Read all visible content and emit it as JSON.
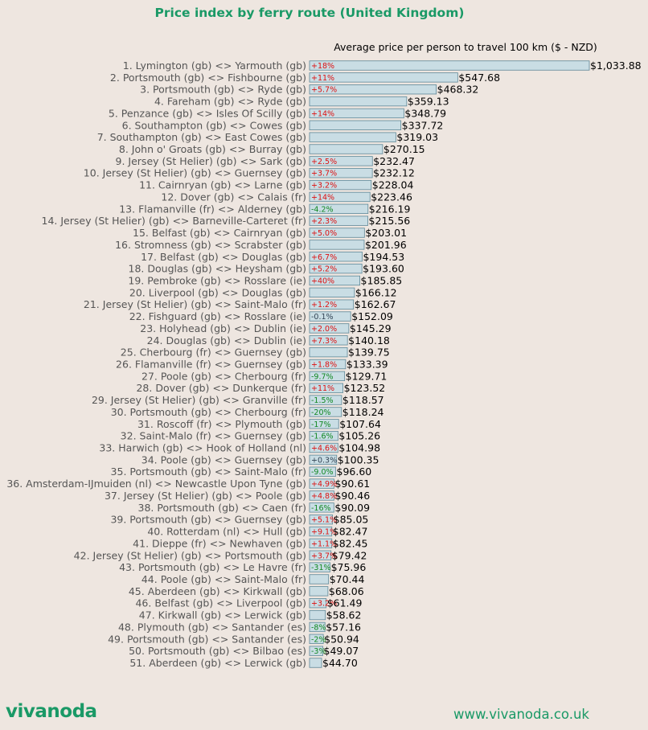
{
  "header": {
    "title": "Price index by ferry route (United Kingdom)"
  },
  "footer": {
    "logo_text": "vivanoda",
    "url": "www.vivanoda.co.uk"
  },
  "colors": {
    "bar_fill": "#c9dde4",
    "bar_stroke": "#5e8898",
    "increase": "#dd1111",
    "decrease": "#118822",
    "neutral": "#334455",
    "brand": "#1a9966"
  },
  "chart_data": {
    "type": "bar",
    "orientation": "horizontal",
    "title": "Price index by ferry route (United Kingdom)",
    "xlabel": "Average price per person to travel 100 km ($ - NZD)",
    "xlim": [
      0,
      1033.88
    ],
    "grid": false,
    "categories": [
      "1. Lymington (gb) <> Yarmouth (gb)",
      "2. Portsmouth (gb) <> Fishbourne (gb)",
      "3. Portsmouth (gb) <> Ryde (gb)",
      "4. Fareham (gb) <> Ryde (gb)",
      "5. Penzance (gb) <> Isles Of Scilly (gb)",
      "6. Southampton (gb) <> Cowes (gb)",
      "7. Southampton (gb) <> East Cowes (gb)",
      "8. John o' Groats (gb) <> Burray (gb)",
      "9. Jersey (St Helier) (gb) <> Sark (gb)",
      "10. Jersey (St Helier) (gb) <> Guernsey (gb)",
      "11. Cairnryan (gb) <> Larne (gb)",
      "12. Dover (gb) <> Calais (fr)",
      "13. Flamanville (fr) <> Alderney (gb)",
      "14. Jersey (St Helier) (gb) <> Barneville-Carteret (fr)",
      "15. Belfast (gb) <> Cairnryan (gb)",
      "16. Stromness (gb) <> Scrabster (gb)",
      "17. Belfast (gb) <> Douglas (gb)",
      "18. Douglas (gb) <> Heysham (gb)",
      "19. Pembroke (gb) <> Rosslare (ie)",
      "20. Liverpool (gb) <> Douglas (gb)",
      "21. Jersey (St Helier) (gb) <> Saint-Malo (fr)",
      "22. Fishguard (gb) <> Rosslare (ie)",
      "23. Holyhead (gb) <> Dublin (ie)",
      "24. Douglas (gb) <> Dublin (ie)",
      "25. Cherbourg (fr) <> Guernsey (gb)",
      "26. Flamanville (fr) <> Guernsey (gb)",
      "27. Poole (gb) <> Cherbourg (fr)",
      "28. Dover (gb) <> Dunkerque (fr)",
      "29. Jersey (St Helier) (gb) <> Granville (fr)",
      "30. Portsmouth (gb) <> Cherbourg (fr)",
      "31. Roscoff (fr) <> Plymouth (gb)",
      "32. Saint-Malo (fr) <> Guernsey (gb)",
      "33. Harwich (gb) <> Hook of Holland (nl)",
      "34. Poole (gb) <> Guernsey (gb)",
      "35. Portsmouth (gb) <> Saint-Malo (fr)",
      "36. Amsterdam-IJmuiden (nl) <> Newcastle Upon Tyne (gb)",
      "37. Jersey (St Helier) (gb) <> Poole (gb)",
      "38. Portsmouth (gb) <> Caen (fr)",
      "39. Portsmouth (gb) <> Guernsey (gb)",
      "40. Rotterdam (nl) <> Hull (gb)",
      "41. Dieppe (fr) <> Newhaven (gb)",
      "42. Jersey (St Helier) (gb) <> Portsmouth (gb)",
      "43. Portsmouth (gb) <> Le Havre (fr)",
      "44. Poole (gb) <> Saint-Malo (fr)",
      "45. Aberdeen (gb) <> Kirkwall (gb)",
      "46. Belfast (gb) <> Liverpool (gb)",
      "47. Kirkwall (gb) <> Lerwick (gb)",
      "48. Plymouth (gb) <> Santander (es)",
      "49. Portsmouth (gb) <> Santander (es)",
      "50. Portsmouth (gb) <> Bilbao (es)",
      "51. Aberdeen (gb) <> Lerwick (gb)"
    ],
    "values": [
      1033.88,
      547.68,
      468.32,
      359.13,
      348.79,
      337.72,
      319.03,
      270.15,
      232.47,
      232.12,
      228.04,
      223.46,
      216.19,
      215.56,
      203.01,
      201.96,
      194.53,
      193.6,
      185.85,
      166.12,
      162.67,
      152.09,
      145.29,
      140.18,
      139.75,
      133.39,
      129.71,
      123.52,
      118.57,
      118.24,
      107.64,
      105.26,
      104.98,
      100.35,
      96.6,
      90.61,
      90.46,
      90.09,
      85.05,
      82.47,
      82.45,
      79.42,
      75.96,
      70.44,
      68.06,
      61.49,
      58.62,
      57.16,
      50.94,
      49.07,
      44.7
    ],
    "value_labels": [
      "$1,033.88",
      "$547.68",
      "$468.32",
      "$359.13",
      "$348.79",
      "$337.72",
      "$319.03",
      "$270.15",
      "$232.47",
      "$232.12",
      "$228.04",
      "$223.46",
      "$216.19",
      "$215.56",
      "$203.01",
      "$201.96",
      "$194.53",
      "$193.60",
      "$185.85",
      "$166.12",
      "$162.67",
      "$152.09",
      "$145.29",
      "$140.18",
      "$139.75",
      "$133.39",
      "$129.71",
      "$123.52",
      "$118.57",
      "$118.24",
      "$107.64",
      "$105.26",
      "$104.98",
      "$100.35",
      "$96.60",
      "$90.61",
      "$90.46",
      "$90.09",
      "$85.05",
      "$82.47",
      "$82.45",
      "$79.42",
      "$75.96",
      "$70.44",
      "$68.06",
      "$61.49",
      "$58.62",
      "$57.16",
      "$50.94",
      "$49.07",
      "$44.70"
    ],
    "change_labels": [
      "+18%",
      "+11%",
      "+5.7%",
      "",
      "+14%",
      "",
      "",
      "",
      "+2.5%",
      "+3.7%",
      "+3.2%",
      "+14%",
      "-4.2%",
      "+2.3%",
      "+5.0%",
      "",
      "+6.7%",
      "+5.2%",
      "+40%",
      "",
      "+1.2%",
      "-0.1%",
      "+2.0%",
      "+7.3%",
      "",
      "+1.8%",
      "-9.7%",
      "+11%",
      "-1.5%",
      "-20%",
      "-17%",
      "-1.6%",
      "+4.6%",
      "+0.3%",
      "-9.0%",
      "+4.9%",
      "+4.8%",
      "-16%",
      "+5.1%",
      "+9.1%",
      "+1.1%",
      "+3.7%",
      "-31%",
      "",
      "",
      "+3.2%",
      "",
      "-8%",
      "-2%",
      "-3%",
      ""
    ]
  }
}
